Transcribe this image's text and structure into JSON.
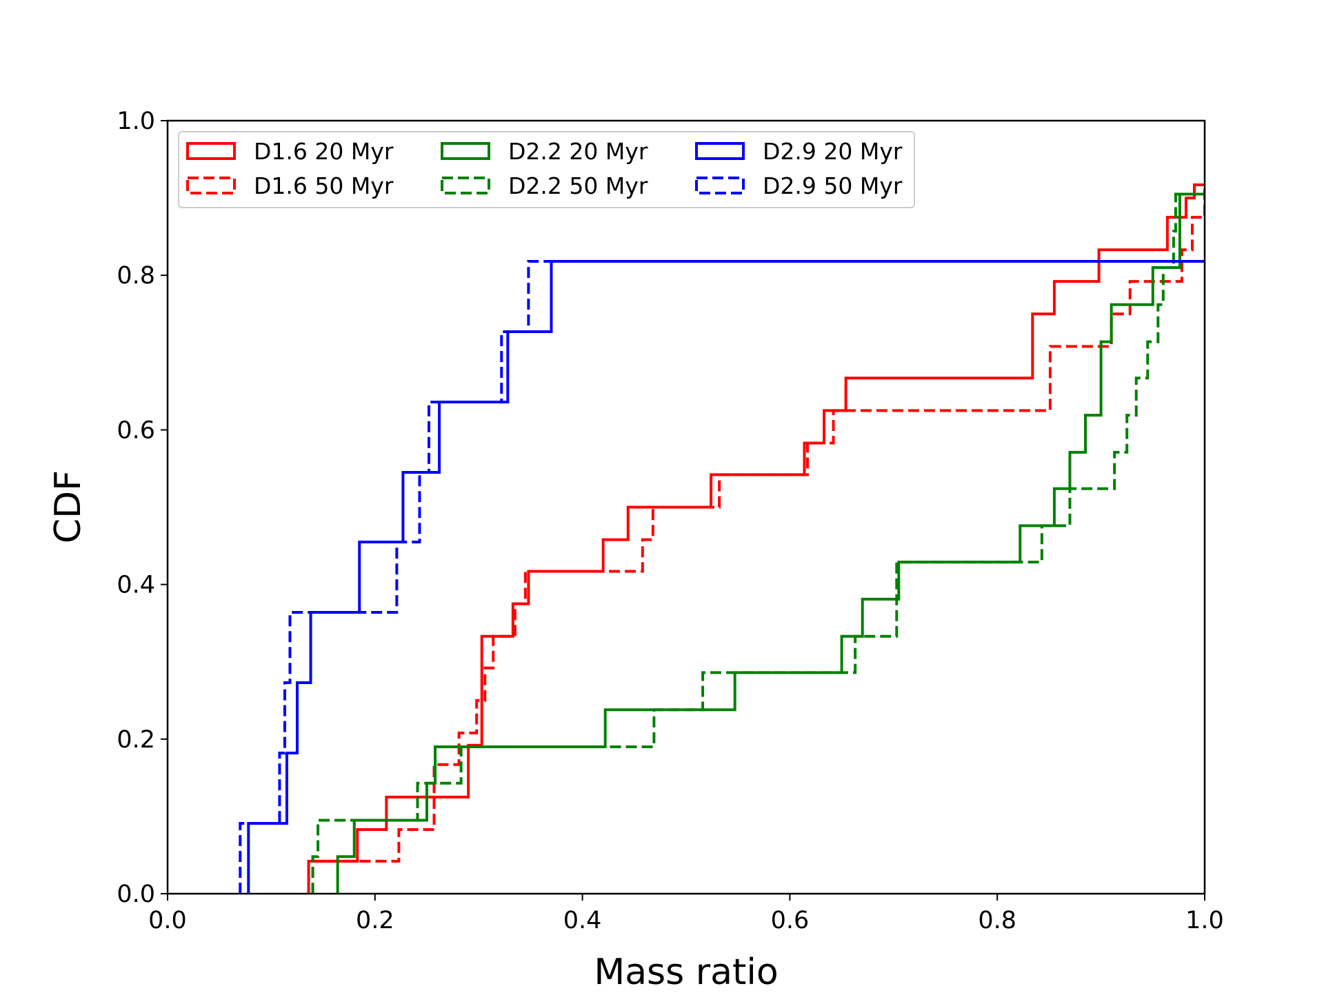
{
  "chart_data": {
    "type": "line",
    "step": "post",
    "title": "",
    "xlabel": "Mass ratio",
    "ylabel": "CDF",
    "xlim": [
      0.0,
      1.0
    ],
    "ylim": [
      0.0,
      1.0
    ],
    "xticks": [
      "0.0",
      "0.2",
      "0.4",
      "0.6",
      "0.8",
      "1.0"
    ],
    "yticks": [
      "0.0",
      "0.2",
      "0.4",
      "0.6",
      "0.8",
      "1.0"
    ],
    "legend_position": "top-left",
    "grid": false,
    "series": [
      {
        "name": "D1.6 20 Myr",
        "color": "#ff0000",
        "dash": "solid",
        "x": [
          0.136,
          0.183,
          0.211,
          0.251,
          0.29,
          0.303,
          0.333,
          0.348,
          0.42,
          0.444,
          0.524,
          0.614,
          0.633,
          0.654,
          0.834,
          0.855,
          0.898,
          0.964,
          0.982,
          0.99,
          1.0
        ],
        "y": [
          0.042,
          0.083,
          0.125,
          0.125,
          0.192,
          0.333,
          0.375,
          0.417,
          0.458,
          0.5,
          0.542,
          0.583,
          0.625,
          0.667,
          0.75,
          0.792,
          0.833,
          0.875,
          0.9,
          0.917,
          0.917
        ]
      },
      {
        "name": "D1.6 50 Myr",
        "color": "#ff0000",
        "dash": "dashed",
        "x": [
          0.14,
          0.223,
          0.257,
          0.281,
          0.298,
          0.306,
          0.314,
          0.335,
          0.345,
          0.458,
          0.468,
          0.532,
          0.617,
          0.642,
          0.71,
          0.851,
          0.91,
          0.928,
          0.978,
          0.988,
          1.0
        ],
        "y": [
          0.042,
          0.083,
          0.167,
          0.208,
          0.25,
          0.292,
          0.333,
          0.375,
          0.417,
          0.458,
          0.5,
          0.542,
          0.583,
          0.625,
          0.625,
          0.708,
          0.75,
          0.792,
          0.833,
          0.875,
          0.917
        ]
      },
      {
        "name": "D2.2 20 Myr",
        "color": "#008000",
        "dash": "solid",
        "x": [
          0.164,
          0.18,
          0.25,
          0.258,
          0.422,
          0.547,
          0.65,
          0.67,
          0.705,
          0.822,
          0.855,
          0.87,
          0.885,
          0.9,
          0.91,
          0.95,
          0.976,
          1.0
        ],
        "y": [
          0.048,
          0.095,
          0.143,
          0.19,
          0.238,
          0.286,
          0.333,
          0.381,
          0.429,
          0.476,
          0.524,
          0.571,
          0.619,
          0.714,
          0.762,
          0.81,
          0.905,
          0.905
        ]
      },
      {
        "name": "D2.2 50 Myr",
        "color": "#008000",
        "dash": "dashed",
        "x": [
          0.14,
          0.145,
          0.241,
          0.283,
          0.29,
          0.469,
          0.516,
          0.663,
          0.703,
          0.843,
          0.87,
          0.913,
          0.925,
          0.934,
          0.945,
          0.955,
          0.96,
          0.97,
          0.972,
          0.98,
          1.0
        ],
        "y": [
          0.048,
          0.095,
          0.143,
          0.19,
          0.19,
          0.238,
          0.286,
          0.333,
          0.429,
          0.476,
          0.524,
          0.571,
          0.619,
          0.667,
          0.714,
          0.762,
          0.81,
          0.857,
          0.905,
          0.905,
          0.905
        ]
      },
      {
        "name": "D2.9 20 Myr",
        "color": "#0000ff",
        "dash": "solid",
        "x": [
          0.078,
          0.115,
          0.125,
          0.138,
          0.185,
          0.227,
          0.262,
          0.328,
          0.37,
          1.0
        ],
        "y": [
          0.091,
          0.182,
          0.273,
          0.364,
          0.455,
          0.545,
          0.636,
          0.727,
          0.818,
          0.818
        ]
      },
      {
        "name": "D2.9 50 Myr",
        "color": "#0000ff",
        "dash": "dashed",
        "x": [
          0.07,
          0.108,
          0.113,
          0.118,
          0.221,
          0.243,
          0.252,
          0.322,
          0.348,
          0.98
        ],
        "y": [
          0.091,
          0.182,
          0.273,
          0.364,
          0.455,
          0.545,
          0.636,
          0.727,
          0.818,
          0.818
        ]
      }
    ]
  }
}
